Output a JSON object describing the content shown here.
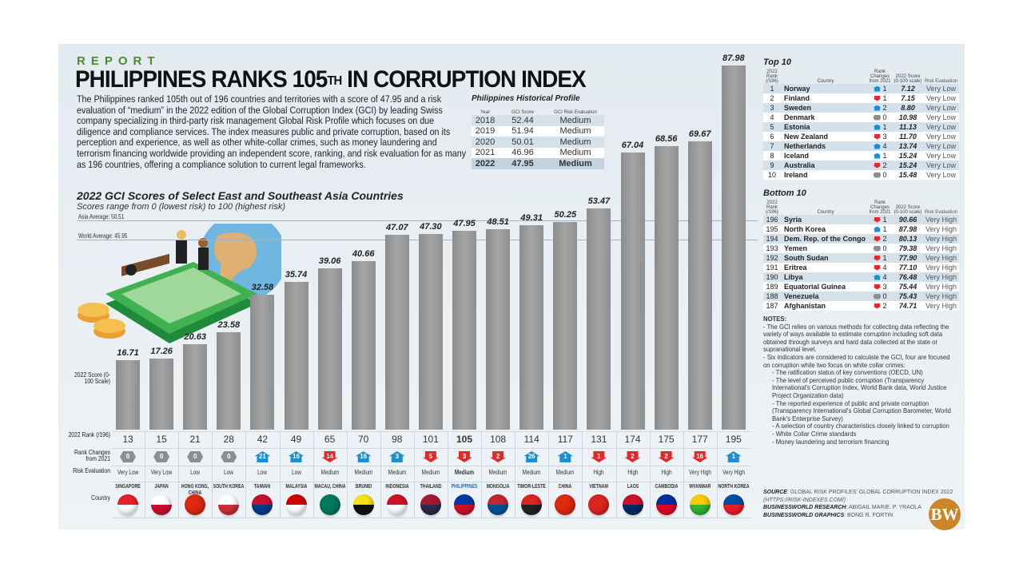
{
  "header": {
    "kicker": "REPORT",
    "headline": "PHILIPPINES RANKS 105",
    "headline_sup": "TH",
    "headline_end": " IN CORRUPTION INDEX",
    "intro": "The Philippines ranked 105th out of 196 countries and territories with a score of 47.95 and a risk evaluation of “medium” in the 2022 edition of the Global Corruption Index (GCI) by leading Swiss company specializing in third-party risk management Global Risk Profile which focuses on due diligence and compliance services. The index measures public and private corruption, based on its perception and experience, as well as other white-collar crimes, such as money laundering and terrorism financing worldwide providing an independent score, ranking, and risk evaluation for as many as 196 countries, offering a compliance solution to current legal frameworks."
  },
  "historical": {
    "title": "Philippines Historical Profile",
    "headers": [
      "Year",
      "GCI Score",
      "GCI Risk Evaluation"
    ],
    "rows": [
      [
        "2018",
        "52.44",
        "Medium"
      ],
      [
        "2019",
        "51.94",
        "Medium"
      ],
      [
        "2020",
        "50.01",
        "Medium"
      ],
      [
        "2021",
        "46.96",
        "Medium"
      ],
      [
        "2022",
        "47.95",
        "Medium"
      ]
    ]
  },
  "chart_data": {
    "type": "bar",
    "title": "2022 GCI Scores of Select East and Southeast Asia Countries",
    "subtitle": "Scores range from 0 (lowest risk) to 100 (highest risk)",
    "ylabel": "2022 Score (0-100 Scale)",
    "ylim": [
      0,
      100
    ],
    "categories": [
      "SINGAPORE",
      "JAPAN",
      "HONG KONG, CHINA",
      "SOUTH KOREA",
      "TAIWAN",
      "MALAYSIA",
      "MACAU, CHINA",
      "BRUNEI",
      "INDONESIA",
      "THAILAND",
      "PHILIPPINES",
      "MONGOLIA",
      "TIMOR-LESTE",
      "CHINA",
      "VIETNAM",
      "LAOS",
      "CAMBODIA",
      "MYANMAR",
      "NORTH KOREA"
    ],
    "values": [
      16.71,
      17.26,
      20.63,
      23.58,
      32.58,
      35.74,
      39.06,
      40.66,
      47.07,
      47.3,
      47.95,
      48.51,
      49.31,
      50.25,
      53.47,
      67.04,
      68.56,
      69.67,
      87.98
    ],
    "value_labels": [
      "16.71",
      "17.26",
      "20.63",
      "23.58",
      "32.58",
      "35.74",
      "39.06",
      "40.66",
      "47.07",
      "47.30",
      "47.95",
      "48.51",
      "49.31",
      "50.25",
      "53.47",
      "67.04",
      "68.56",
      "69.67",
      "87.98"
    ],
    "ranks": [
      "13",
      "15",
      "21",
      "28",
      "42",
      "49",
      "65",
      "70",
      "98",
      "101",
      "105",
      "108",
      "114",
      "117",
      "131",
      "174",
      "175",
      "177",
      "195"
    ],
    "rank_changes": [
      {
        "dir": "same",
        "n": "0"
      },
      {
        "dir": "same",
        "n": "0"
      },
      {
        "dir": "same",
        "n": "0"
      },
      {
        "dir": "same",
        "n": "0"
      },
      {
        "dir": "up",
        "n": "21"
      },
      {
        "dir": "up",
        "n": "16"
      },
      {
        "dir": "down",
        "n": "14"
      },
      {
        "dir": "up",
        "n": "16"
      },
      {
        "dir": "up",
        "n": "3"
      },
      {
        "dir": "down",
        "n": "5"
      },
      {
        "dir": "down",
        "n": "3"
      },
      {
        "dir": "down",
        "n": "2"
      },
      {
        "dir": "up",
        "n": "26"
      },
      {
        "dir": "up",
        "n": "1"
      },
      {
        "dir": "down",
        "n": "1"
      },
      {
        "dir": "down",
        "n": "2"
      },
      {
        "dir": "down",
        "n": "2"
      },
      {
        "dir": "down",
        "n": "16"
      },
      {
        "dir": "up",
        "n": "1"
      }
    ],
    "risk": [
      "Very Low",
      "Very Low",
      "Low",
      "Low",
      "Low",
      "Low",
      "Medium",
      "Medium",
      "Medium",
      "Medium",
      "Medium",
      "Medium",
      "Medium",
      "Medium",
      "High",
      "High",
      "High",
      "Very High",
      "Very High"
    ],
    "flag_colors": [
      [
        "#e8202a",
        "#fff"
      ],
      [
        "#fff",
        "#c8102e"
      ],
      [
        "#de2910",
        "#de2910"
      ],
      [
        "#fff",
        "#cd2e3a"
      ],
      [
        "#c8102e",
        "#0a3a8c"
      ],
      [
        "#cc0001",
        "#fff"
      ],
      [
        "#00785e",
        "#00785e"
      ],
      [
        "#f7e017",
        "#111"
      ],
      [
        "#ce1126",
        "#fff"
      ],
      [
        "#a51931",
        "#2d2a4a"
      ],
      [
        "#0038a8",
        "#ce1126"
      ],
      [
        "#c4272f",
        "#015197"
      ],
      [
        "#dc241f",
        "#222"
      ],
      [
        "#de2910",
        "#de2910"
      ],
      [
        "#da251d",
        "#da251d"
      ],
      [
        "#ce1126",
        "#002868"
      ],
      [
        "#032ea1",
        "#e00025"
      ],
      [
        "#fecb00",
        "#34b233"
      ],
      [
        "#024fa2",
        "#ed1c27"
      ]
    ],
    "highlight": "PHILIPPINES",
    "reference_lines": [
      {
        "label": "Asia Average: 50.51",
        "value": 50.51
      },
      {
        "label": "World Average: 45.95",
        "value": 45.95
      }
    ],
    "row_labels": {
      "score": "2022 Score (0-100 Scale)",
      "rank": "2022 Rank (/196)",
      "change": "Rank Changes from 2021",
      "risk": "Risk Evaluation",
      "country": "Country"
    },
    "colors": {
      "bar": "#999999",
      "up": "#1d8fd0",
      "down": "#e02a2a",
      "same": "#8e8e8e",
      "highlight": "#1d6fc0"
    }
  },
  "top10": {
    "title": "Top 10",
    "headers": [
      "2022 Rank (/196)",
      "Country",
      "Rank Changes from 2021",
      "2022 Score (0-100 scale)",
      "Risk Evaluation"
    ],
    "rows": [
      [
        "1",
        "Norway",
        "up",
        "1",
        "7.12",
        "Very Low"
      ],
      [
        "2",
        "Finland",
        "down",
        "1",
        "7.15",
        "Very Low"
      ],
      [
        "3",
        "Sweden",
        "up",
        "2",
        "8.80",
        "Very Low"
      ],
      [
        "4",
        "Denmark",
        "same",
        "0",
        "10.98",
        "Very Low"
      ],
      [
        "5",
        "Estonia",
        "up",
        "1",
        "11.13",
        "Very Low"
      ],
      [
        "6",
        "New Zealand",
        "down",
        "3",
        "11.70",
        "Very Low"
      ],
      [
        "7",
        "Netherlands",
        "up",
        "4",
        "13.74",
        "Very Low"
      ],
      [
        "8",
        "Iceland",
        "up",
        "1",
        "15.24",
        "Very Low"
      ],
      [
        "9",
        "Australia",
        "down",
        "2",
        "15.24",
        "Very Low"
      ],
      [
        "10",
        "Ireland",
        "same",
        "0",
        "15.48",
        "Very Low"
      ]
    ]
  },
  "bottom10": {
    "title": "Bottom 10",
    "headers": [
      "2022 Rank (/196)",
      "Country",
      "Rank Changes from 2021",
      "2022 Score (0-100 scale)",
      "Risk Evaluation"
    ],
    "rows": [
      [
        "196",
        "Syria",
        "down",
        "1",
        "90.66",
        "Very High"
      ],
      [
        "195",
        "North Korea",
        "up",
        "1",
        "87.98",
        "Very High"
      ],
      [
        "194",
        "Dem. Rep. of the Congo",
        "down",
        "2",
        "80.13",
        "Very High"
      ],
      [
        "193",
        "Yemen",
        "same",
        "0",
        "79.38",
        "Very High"
      ],
      [
        "192",
        "South Sudan",
        "down",
        "1",
        "77.90",
        "Very High"
      ],
      [
        "191",
        "Eritrea",
        "down",
        "4",
        "77.10",
        "Very High"
      ],
      [
        "190",
        "Libya",
        "up",
        "4",
        "76.48",
        "Very High"
      ],
      [
        "189",
        "Equatorial Guinea",
        "down",
        "3",
        "75.44",
        "Very High"
      ],
      [
        "188",
        "Venezuela",
        "same",
        "0",
        "75.43",
        "Very High"
      ],
      [
        "187",
        "Afghanistan",
        "down",
        "2",
        "74.71",
        "Very High"
      ]
    ]
  },
  "notes": {
    "title": "NOTES:",
    "items": [
      {
        "t": "- The GCI relies on various methods for collecting data reflecting the variety of ways available to estimate corruption including soft data obtained through surveys and hard data collected at the state or supranational level.",
        "ind": false
      },
      {
        "t": "- Six indicators are considered to calculate the GCI, four are focused on corruption while two focus on white collar crimes:",
        "ind": false
      },
      {
        "t": "- The ratification status of key conventions (OECD, UN)",
        "ind": true
      },
      {
        "t": "- The level of perceived public corruption (Transparency International's Corruption Index, World Bank data, World Justice Project Organization data)",
        "ind": true
      },
      {
        "t": "- The reported experience of public and private corruption (Transparency International's Global Corruption Barometer, World Bank's Enterprise Survey)",
        "ind": true
      },
      {
        "t": "- A selection of country characteristics closely linked to corruption",
        "ind": true
      },
      {
        "t": "- White Collar Crime standards",
        "ind": true
      },
      {
        "t": "- Money laundering and terrorism financing",
        "ind": true
      }
    ]
  },
  "credits": {
    "source_label": "SOURCE",
    "source": ": GLOBAL RISK PROFILES' GLOBAL CORRUPTION INDEX 2022",
    "source_url": "(HTTPS://RISK-INDEXES.COM/)",
    "research_label": "BUSINESSWORLD RESEARCH",
    "research": ": ABIGAIL MARIE. P. YRAOLA",
    "graphics_label": "BUSINESSWORLD GRAPHICS",
    "graphics": ": BONG R. FORTIN",
    "logo": "BW"
  }
}
